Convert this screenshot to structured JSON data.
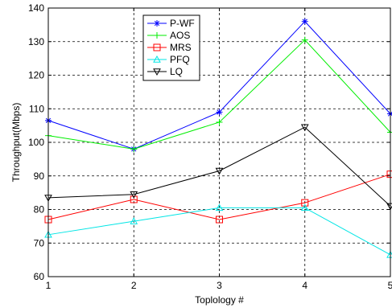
{
  "chart_data": {
    "type": "line",
    "title": "",
    "xlabel": "Toplology #",
    "ylabel": "Throughput(Mbps)",
    "x": [
      1,
      2,
      3,
      4,
      5
    ],
    "xlim": [
      1,
      5
    ],
    "ylim": [
      60,
      140
    ],
    "xticks": [
      "1",
      "2",
      "3",
      "4",
      "5"
    ],
    "yticks": [
      "60",
      "70",
      "80",
      "90",
      "100",
      "110",
      "120",
      "130",
      "140"
    ],
    "grid": true,
    "legend_position": "top-center",
    "series": [
      {
        "name": "P-WF",
        "color": "#0000ff",
        "marker": "asterisk",
        "values": [
          106.5,
          98,
          109,
          136,
          108.5
        ]
      },
      {
        "name": "AOS",
        "color": "#00ee00",
        "marker": "plus",
        "values": [
          102,
          98,
          106,
          130.5,
          103
        ]
      },
      {
        "name": "MRS",
        "color": "#ff0000",
        "marker": "square",
        "values": [
          77,
          83,
          77,
          82,
          90.5
        ]
      },
      {
        "name": "PFQ",
        "color": "#00e5e5",
        "marker": "triangle-up",
        "values": [
          72.5,
          76.5,
          80.5,
          80.5,
          66.5
        ]
      },
      {
        "name": "LQ",
        "color": "#000000",
        "marker": "triangle-down",
        "values": [
          83.5,
          84.5,
          91.5,
          104.5,
          81
        ]
      }
    ]
  }
}
